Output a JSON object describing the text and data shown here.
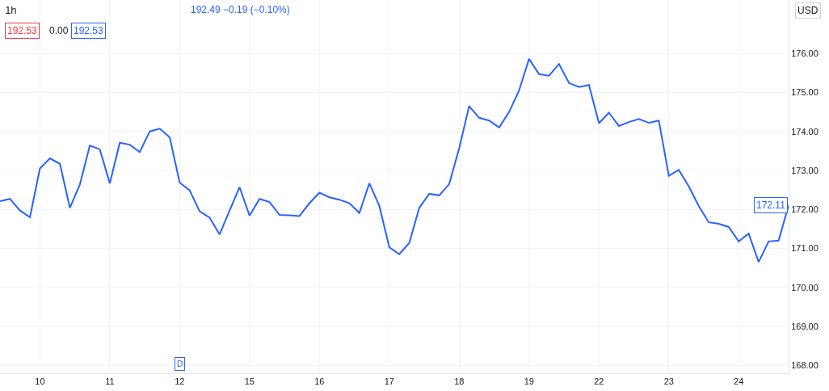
{
  "chart_data": {
    "type": "line",
    "title": "1h",
    "categories": [
      null,
      null,
      null,
      null,
      "10",
      null,
      null,
      null,
      null,
      null,
      null,
      "11",
      null,
      null,
      null,
      null,
      null,
      null,
      "12",
      null,
      null,
      null,
      null,
      null,
      null,
      "15",
      null,
      null,
      null,
      null,
      null,
      null,
      "16",
      null,
      null,
      null,
      null,
      null,
      null,
      "17",
      null,
      null,
      null,
      null,
      null,
      null,
      "18",
      null,
      null,
      null,
      null,
      null,
      null,
      "19",
      null,
      null,
      null,
      null,
      null,
      null,
      "22",
      null,
      null,
      null,
      null,
      null,
      null,
      "23",
      null,
      null,
      null,
      null,
      null,
      null,
      "24",
      null,
      null,
      null,
      null,
      null
    ],
    "series": [
      {
        "color": "#2962ff",
        "values": [
          172.21,
          172.27,
          171.97,
          171.8,
          173.05,
          173.31,
          173.17,
          172.04,
          172.64,
          173.64,
          173.54,
          172.67,
          173.71,
          173.66,
          173.47,
          174.0,
          174.07,
          173.85,
          172.69,
          172.49,
          171.95,
          171.79,
          171.36,
          171.97,
          172.57,
          171.84,
          172.27,
          172.19,
          171.86,
          171.85,
          171.83,
          172.16,
          172.43,
          172.31,
          172.25,
          172.16,
          171.91,
          172.67,
          172.09,
          171.03,
          170.85,
          171.14,
          172.04,
          172.4,
          172.36,
          172.65,
          173.57,
          174.65,
          174.35,
          174.28,
          174.1,
          174.5,
          175.05,
          175.86,
          175.47,
          175.43,
          175.73,
          175.24,
          175.14,
          175.19,
          174.21,
          174.48,
          174.14,
          174.24,
          174.32,
          174.22,
          174.28,
          172.86,
          173.01,
          172.59,
          172.09,
          171.67,
          171.63,
          171.55,
          171.18,
          171.38,
          170.65,
          171.18,
          171.2,
          172.11
        ]
      }
    ],
    "ylim": [
      167.8,
      177.37
    ],
    "yticks": [
      {
        "value": 168,
        "label": "168.00"
      },
      {
        "value": 169,
        "label": "169.00"
      },
      {
        "value": 170,
        "label": "170.00"
      },
      {
        "value": 171,
        "label": "171.00"
      },
      {
        "value": 172,
        "label": "172.00"
      },
      {
        "value": 173,
        "label": "173.00"
      },
      {
        "value": 174,
        "label": "174.00"
      },
      {
        "value": 175,
        "label": "175.00"
      },
      {
        "value": 176,
        "label": "176.00"
      }
    ],
    "grid": true,
    "marker": "none",
    "line_style": "solid",
    "annotations": [
      "192.49 −0.19 (−0.10%)",
      "192.53",
      "0.00",
      "192.53",
      "USD",
      "172.11",
      {
        "text": "D",
        "x": "12",
        "y": 168.03
      }
    ]
  }
}
